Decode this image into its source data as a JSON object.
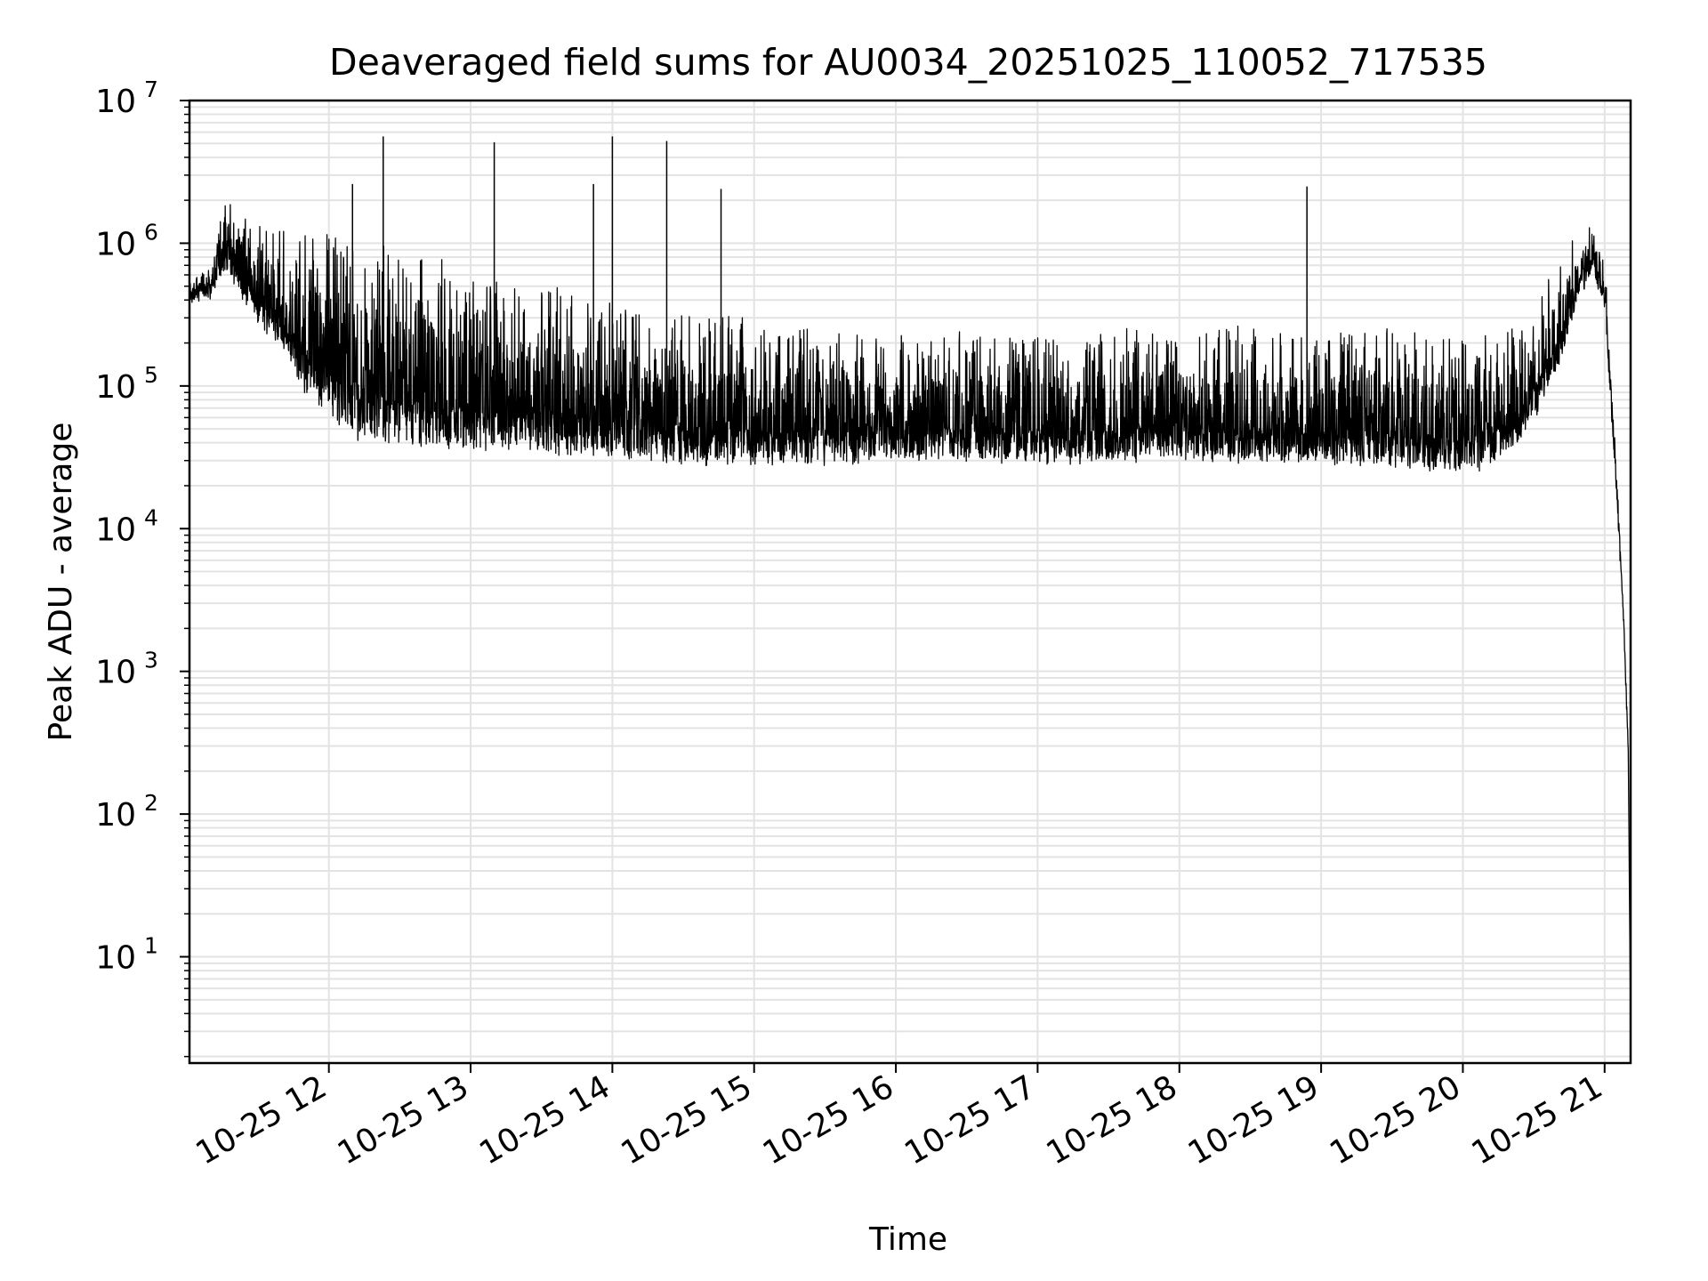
{
  "chart_data": {
    "type": "line",
    "title": "Deaveraged field sums for AU0034_20251025_110052_717535",
    "xlabel": "Time",
    "ylabel": "Peak ADU - average",
    "yscale": "log",
    "ylim": [
      1.8,
      10000000
    ],
    "xlim": [
      "2025-10-25 11:01",
      "2025-10-25 21:11"
    ],
    "grid": true,
    "line_color": "#000000",
    "grid_color": "#e3e3e3",
    "x_ticks": [
      {
        "value": "2025-10-25 12:00",
        "label": "10-25 12"
      },
      {
        "value": "2025-10-25 13:00",
        "label": "10-25 13"
      },
      {
        "value": "2025-10-25 14:00",
        "label": "10-25 14"
      },
      {
        "value": "2025-10-25 15:00",
        "label": "10-25 15"
      },
      {
        "value": "2025-10-25 16:00",
        "label": "10-25 16"
      },
      {
        "value": "2025-10-25 17:00",
        "label": "10-25 17"
      },
      {
        "value": "2025-10-25 18:00",
        "label": "10-25 18"
      },
      {
        "value": "2025-10-25 19:00",
        "label": "10-25 19"
      },
      {
        "value": "2025-10-25 20:00",
        "label": "10-25 20"
      },
      {
        "value": "2025-10-25 21:00",
        "label": "10-25 21"
      }
    ],
    "y_ticks": [
      {
        "value": 10,
        "base": "10",
        "exp": "1"
      },
      {
        "value": 100,
        "base": "10",
        "exp": "2"
      },
      {
        "value": 1000,
        "base": "10",
        "exp": "3"
      },
      {
        "value": 10000,
        "base": "10",
        "exp": "4"
      },
      {
        "value": 100000,
        "base": "10",
        "exp": "5"
      },
      {
        "value": 1000000,
        "base": "10",
        "exp": "6"
      },
      {
        "value": 10000000,
        "base": "10",
        "exp": "7"
      }
    ],
    "series": [
      {
        "x": [
          "2025-10-25 11:01",
          "2025-10-25 11:10",
          "2025-10-25 11:16",
          "2025-10-25 11:20",
          "2025-10-25 11:28",
          "2025-10-25 11:40",
          "2025-10-25 11:50",
          "2025-10-25 12:10",
          "2025-10-25 12:25",
          "2025-10-25 12:40",
          "2025-10-25 13:00",
          "2025-10-25 13:20",
          "2025-10-25 13:40",
          "2025-10-25 14:00",
          "2025-10-25 14:30",
          "2025-10-25 15:00",
          "2025-10-25 15:30",
          "2025-10-25 16:00",
          "2025-10-25 16:30",
          "2025-10-25 17:00",
          "2025-10-25 17:30",
          "2025-10-25 18:00",
          "2025-10-25 18:30",
          "2025-10-25 19:00",
          "2025-10-25 19:30",
          "2025-10-25 19:50",
          "2025-10-25 20:10",
          "2025-10-25 20:25",
          "2025-10-25 20:40",
          "2025-10-25 20:50",
          "2025-10-25 20:55",
          "2025-10-25 21:00",
          "2025-10-25 21:05",
          "2025-10-25 21:08",
          "2025-10-25 21:10",
          "2025-10-25 21:11"
        ],
        "y_floor": [
          450000,
          480000,
          700000,
          600000,
          350000,
          200000,
          100000,
          50000,
          45000,
          42000,
          40000,
          40000,
          38000,
          35000,
          33000,
          32000,
          33000,
          34000,
          35000,
          33000,
          33000,
          34000,
          33000,
          33000,
          32000,
          28000,
          30000,
          45000,
          150000,
          500000,
          700000,
          400000,
          20000,
          2500,
          300,
          3.5
        ],
        "y_top": [
          650000,
          700000,
          2400000,
          2000000,
          1500000,
          1500000,
          1400000,
          1300000,
          1200000,
          900000,
          700000,
          600000,
          500000,
          400000,
          350000,
          300000,
          280000,
          250000,
          250000,
          250000,
          260000,
          280000,
          280000,
          270000,
          260000,
          250000,
          240000,
          300000,
          800000,
          1400000,
          1500000,
          900000,
          30000,
          3000,
          300,
          3.5
        ],
        "spikes": [
          {
            "x": "2025-10-25 12:10",
            "y": 2600000
          },
          {
            "x": "2025-10-25 12:23",
            "y": 5600000
          },
          {
            "x": "2025-10-25 13:10",
            "y": 5100000
          },
          {
            "x": "2025-10-25 13:52",
            "y": 2600000
          },
          {
            "x": "2025-10-25 14:00",
            "y": 5600000
          },
          {
            "x": "2025-10-25 14:23",
            "y": 5200000
          },
          {
            "x": "2025-10-25 14:46",
            "y": 2400000
          },
          {
            "x": "2025-10-25 18:54",
            "y": 2500000
          }
        ]
      }
    ]
  }
}
